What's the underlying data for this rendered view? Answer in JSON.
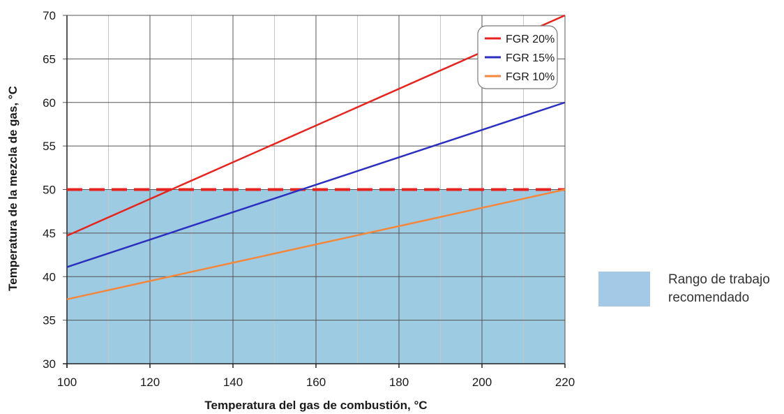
{
  "chart_data": {
    "type": "line",
    "xlabel": "Temperatura del gas de combustión, °C",
    "ylabel": "Temperatura de la mezcla de gas, °C",
    "xlim": [
      100,
      220
    ],
    "ylim": [
      30,
      70
    ],
    "x_ticks": [
      "100",
      "120",
      "140",
      "160",
      "180",
      "200",
      "220"
    ],
    "y_ticks": [
      "30",
      "35",
      "40",
      "45",
      "50",
      "55",
      "60",
      "65",
      "70"
    ],
    "x_minor_step": 10,
    "grid": true,
    "legend_position": "top-right",
    "series": [
      {
        "name": "FGR 20%",
        "color": "#e8231d",
        "x": [
          100,
          220
        ],
        "y": [
          44.7,
          70
        ]
      },
      {
        "name": "FGR 15%",
        "color": "#2b2fbf",
        "x": [
          100,
          220
        ],
        "y": [
          41.1,
          60
        ]
      },
      {
        "name": "FGR 10%",
        "color": "#f5873b",
        "x": [
          100,
          220
        ],
        "y": [
          37.4,
          50
        ]
      }
    ],
    "threshold": {
      "y": 50,
      "color": "#e8231d",
      "style": "dashed"
    },
    "recommended_range": {
      "y": [
        30,
        50
      ],
      "color": "#9dcbe2",
      "label": "Rango de trabajo\nrecomendado"
    }
  }
}
